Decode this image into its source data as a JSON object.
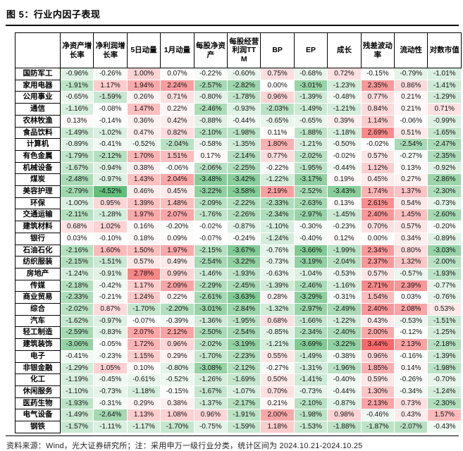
{
  "title": "图 5：行业内因子表现",
  "footer": "资料来源：Wind，光大证券研究所；注：采用申万一级行业分类，统计区间为 2024.10.21-2024.10.25",
  "chart_data": {
    "type": "heatmap",
    "value_format": "percent_2dp",
    "columns": [
      "净资产增长率",
      "净利润增长率",
      "5日动量",
      "1月动量",
      "每股净资产",
      "每股经营利润TTM",
      "BP",
      "EP",
      "成长",
      "残差波动率",
      "流动性",
      "对数市值"
    ],
    "rows": [
      {
        "label": "国防军工",
        "values": [
          -0.96,
          -0.26,
          1.0,
          0.07,
          -0.22,
          -0.6,
          0.75,
          -0.68,
          0.72,
          -0.15,
          -0.79,
          -1.01
        ]
      },
      {
        "label": "家用电器",
        "values": [
          -1.91,
          1.17,
          1.94,
          2.24,
          -2.57,
          -2.82,
          0.0,
          -3.01,
          -1.23,
          2.35,
          0.86,
          -1.41
        ]
      },
      {
        "label": "公用事业",
        "values": [
          -0.65,
          -1.59,
          0.26,
          0.71,
          -0.8,
          -1.78,
          0.96,
          -1.39,
          -0.48,
          0.77,
          0.21,
          -1.29
        ]
      },
      {
        "label": "通信",
        "values": [
          -1.16,
          -0.08,
          1.47,
          0.22,
          -2.46,
          -0.93,
          -2.03,
          -1.49,
          -1.21,
          0.84,
          0.21,
          0.71
        ]
      },
      {
        "label": "农林牧渔",
        "values": [
          0.13,
          -0.14,
          0.36,
          0.42,
          -0.88,
          -0.44,
          -0.65,
          -0.65,
          0.39,
          1.14,
          -0.06,
          -0.99
        ]
      },
      {
        "label": "食品饮料",
        "values": [
          -1.49,
          -1.02,
          0.47,
          0.82,
          -2.1,
          -1.98,
          0.11,
          -1.88,
          -1.18,
          2.69,
          0.51,
          -1.65
        ]
      },
      {
        "label": "计算机",
        "values": [
          -0.89,
          -0.41,
          -0.52,
          -2.04,
          -0.58,
          -1.35,
          1.8,
          -1.21,
          -0.5,
          -0.02,
          -2.54,
          -2.47
        ]
      },
      {
        "label": "有色金属",
        "values": [
          -1.79,
          -2.12,
          1.7,
          1.51,
          0.17,
          -2.14,
          0.77,
          -2.02,
          -0.02,
          0.57,
          -0.27,
          -2.35
        ]
      },
      {
        "label": "机械设备",
        "values": [
          -1.67,
          -0.94,
          0.38,
          -0.06,
          -2.06,
          -2.25,
          -0.22,
          -1.95,
          -0.44,
          1.12,
          0.13,
          -0.92
        ]
      },
      {
        "label": "煤炭",
        "values": [
          -2.48,
          -0.97,
          1.43,
          2.04,
          -3.48,
          -3.42,
          -1.22,
          -3.17,
          0.19,
          0.45,
          0.27,
          -2.86
        ]
      },
      {
        "label": "美容护理",
        "values": [
          -2.79,
          -4.52,
          0.46,
          0.45,
          -3.22,
          -3.58,
          2.19,
          -2.52,
          -3.43,
          1.74,
          1.37,
          -2.3
        ]
      },
      {
        "label": "环保",
        "values": [
          -1.0,
          0.95,
          1.39,
          1.48,
          -2.09,
          -2.22,
          -2.33,
          -2.63,
          0.13,
          2.61,
          0.54,
          -0.73
        ]
      },
      {
        "label": "交通运输",
        "values": [
          -2.11,
          -1.28,
          1.97,
          2.07,
          -1.76,
          -2.26,
          -2.34,
          -2.97,
          -1.45,
          2.4,
          1.45,
          -2.6
        ]
      },
      {
        "label": "建筑材料",
        "values": [
          0.68,
          1.02,
          0.16,
          -0.2,
          -0.02,
          -0.87,
          -1.1,
          -0.3,
          -0.23,
          0.7,
          0.57,
          -0.2
        ]
      },
      {
        "label": "银行",
        "values": [
          0.03,
          -0.1,
          0.18,
          0.09,
          -0.07,
          -0.24,
          -1.24,
          -0.4,
          0.12,
          0.0,
          0.34,
          -0.89
        ]
      },
      {
        "label": "石油石化",
        "values": [
          -2.16,
          1.6,
          1.5,
          1.97,
          -2.15,
          -3.67,
          -0.76,
          -3.66,
          -1.99,
          2.34,
          0.8,
          -3.03
        ]
      },
      {
        "label": "纺织服装",
        "values": [
          -2.15,
          -1.51,
          0.57,
          0.49,
          -2.54,
          -3.22,
          -0.73,
          -3.19,
          -2.04,
          2.37,
          1.32,
          -2.0
        ]
      },
      {
        "label": "房地产",
        "values": [
          -1.24,
          -0.91,
          2.78,
          0.99,
          -1.46,
          -1.93,
          -0.63,
          -1.04,
          -0.53,
          0.57,
          -0.57,
          -1.93
        ]
      },
      {
        "label": "传媒",
        "values": [
          -2.18,
          -0.42,
          1.17,
          2.09,
          -2.29,
          -2.45,
          -1.39,
          -2.46,
          -1.16,
          2.71,
          2.39,
          -0.77
        ]
      },
      {
        "label": "商业贸易",
        "values": [
          -2.33,
          -0.21,
          1.24,
          0.22,
          -2.61,
          -3.63,
          0.28,
          -3.29,
          -0.31,
          1.54,
          0.03,
          -0.76
        ]
      },
      {
        "label": "综合",
        "values": [
          -2.02,
          0.87,
          -1.7,
          -2.2,
          -3.01,
          -2.84,
          -1.32,
          -2.97,
          -2.49,
          2.4,
          2.08,
          0.53
        ]
      },
      {
        "label": "汽车",
        "values": [
          -1.62,
          -0.97,
          -0.07,
          -0.39,
          -1.36,
          -1.95,
          0.68,
          -1.66,
          -1.22,
          0.43,
          -0.53,
          -1.51
        ]
      },
      {
        "label": "轻工制造",
        "values": [
          -2.59,
          -0.83,
          2.07,
          2.12,
          -2.5,
          -2.54,
          -0.85,
          -2.34,
          -2.4,
          2.0,
          -0.12,
          -1.25
        ]
      },
      {
        "label": "建筑装饰",
        "values": [
          -3.06,
          -0.05,
          1.72,
          0.96,
          -2.02,
          -3.19,
          -1.21,
          -3.69,
          -3.22,
          3.44,
          2.13,
          -2.18
        ]
      },
      {
        "label": "电子",
        "values": [
          -0.41,
          -0.23,
          1.15,
          0.29,
          -1.7,
          -2.23,
          0.55,
          -1.49,
          -0.38,
          0.96,
          -0.16,
          -1.39
        ]
      },
      {
        "label": "非银金融",
        "values": [
          -1.29,
          1.05,
          0.1,
          -0.8,
          -3.08,
          -2.12,
          -0.27,
          -1.31,
          -1.96,
          1.85,
          0.14,
          -1.98
        ]
      },
      {
        "label": "化工",
        "values": [
          -1.19,
          -0.45,
          -0.61,
          -0.52,
          -1.26,
          -1.69,
          0.5,
          -1.41,
          -0.4,
          0.59,
          -0.26,
          -0.7
        ]
      },
      {
        "label": "休闲服务",
        "values": [
          -1.1,
          -0.73,
          -1.18,
          -0.15,
          -1.67,
          -1.07,
          0.7,
          -0.73,
          -0.44,
          1.3,
          -0.34,
          -1.24
        ]
      },
      {
        "label": "医药生物",
        "values": [
          -1.93,
          -0.31,
          0.29,
          0.38,
          -1.37,
          -2.17,
          0.21,
          -2.1,
          -0.87,
          2.13,
          0.73,
          -2.3
        ]
      },
      {
        "label": "电气设备",
        "values": [
          -1.49,
          -2.64,
          1.13,
          1.08,
          0.96,
          -1.91,
          2.0,
          -1.98,
          0.98,
          -0.46,
          0.43,
          1.57
        ]
      },
      {
        "label": "钢铁",
        "values": [
          -1.57,
          -1.11,
          -1.17,
          -1.7,
          -0.75,
          -1.59,
          1.18,
          -1.53,
          -1.88,
          -1.87,
          -2.07,
          -0.43
        ]
      }
    ],
    "colorscale": {
      "min": -4.52,
      "mid": 0,
      "max": 3.44,
      "min_color": "#63BE7B",
      "mid_color": "#FFFFFF",
      "max_color": "#F8696B"
    }
  }
}
